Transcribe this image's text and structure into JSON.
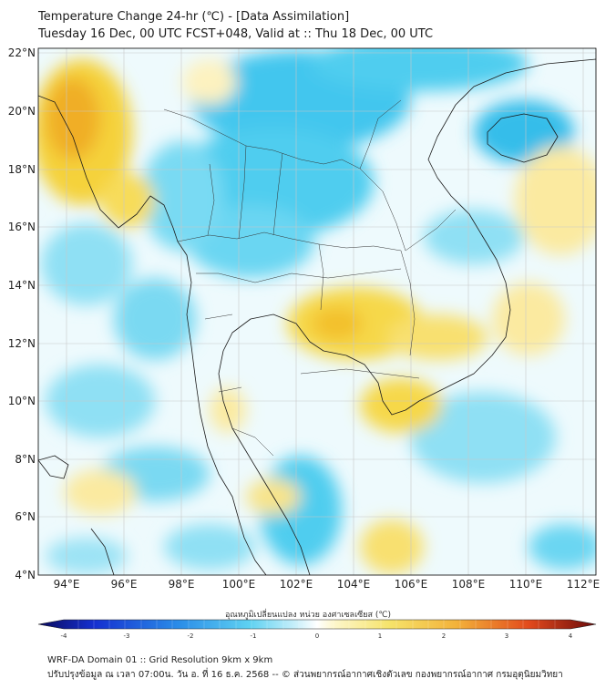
{
  "title": {
    "line1": "Temperature Change 24-hr (℃) - [Data Assimilation]",
    "line2": "Tuesday 16 Dec, 00 UTC FCST+048, Valid at :: Thu 18 Dec, 00 UTC"
  },
  "map": {
    "lon_range": [
      93,
      112.5
    ],
    "lat_range": [
      4,
      22.2
    ],
    "lon_ticks": [
      "94°E",
      "96°E",
      "98°E",
      "100°E",
      "102°E",
      "104°E",
      "106°E",
      "108°E",
      "110°E",
      "112°E"
    ],
    "lat_ticks": [
      "22°N",
      "20°N",
      "18°N",
      "16°N",
      "14°N",
      "12°N",
      "10°N",
      "8°N",
      "6°N",
      "4°N"
    ],
    "gridlines": true
  },
  "colorbar": {
    "label": "อุณหภูมิเปลี่ยนแปลง หน่วย องศาเซลเซียส (℃)",
    "ticks": [
      "-4",
      "-3",
      "-2",
      "-1",
      "0",
      "1",
      "2",
      "3",
      "4"
    ],
    "range": [
      -4,
      4
    ]
  },
  "footer": {
    "line1": "WRF-DA Domain 01 :: Grid Resolution 9km x 9km",
    "line2": "ปรับปรุงข้อมูล ณ เวลา 07:00น. วัน อ. ที่ 16 ธ.ค. 2568 -- © ส่วนพยากรณ์อากาศเชิงตัวเลข กองพยากรณ์อากาศ กรมอุตุนิยมวิทยา"
  },
  "colors": {
    "cold": "#3fc8ee",
    "neutral": "#ffffff",
    "warm": "#f5d23a",
    "hot": "#f0a020"
  }
}
